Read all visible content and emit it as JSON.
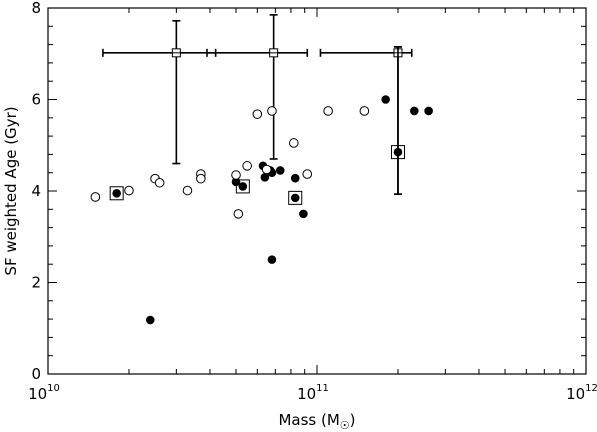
{
  "chart_data": {
    "type": "scatter",
    "title": "",
    "xlabel": {
      "main": "Mass (M",
      "sym": "☉",
      "close": ")"
    },
    "ylabel": "SF weighted Age (Gyr)",
    "xscale": "log",
    "xlim": [
      10000000000.0,
      1000000000000.0
    ],
    "ylim": [
      0,
      8
    ],
    "x_major_ticks": [
      {
        "value": 10000000000.0,
        "base": "10",
        "exp": "10"
      },
      {
        "value": 100000000000.0,
        "base": "10",
        "exp": "11"
      },
      {
        "value": 1000000000000.0,
        "base": "10",
        "exp": "12"
      }
    ],
    "y_major_ticks": [
      0,
      2,
      4,
      6,
      8
    ],
    "y_minor_step": 0.4,
    "grid": false,
    "legend": "none",
    "series": [
      {
        "marker": "filled-circle",
        "points": [
          [
            18000000000.0,
            3.95
          ],
          [
            24000000000.0,
            1.18
          ],
          [
            50000000000.0,
            4.2
          ],
          [
            53000000000.0,
            4.1
          ],
          [
            63000000000.0,
            4.55
          ],
          [
            64000000000.0,
            4.3
          ],
          [
            67000000000.0,
            4.45
          ],
          [
            68000000000.0,
            4.4
          ],
          [
            68000000000.0,
            2.5
          ],
          [
            73000000000.0,
            4.45
          ],
          [
            83000000000.0,
            3.85
          ],
          [
            83000000000.0,
            4.28
          ],
          [
            89000000000.0,
            3.5
          ],
          [
            180000000000.0,
            6.0
          ],
          [
            200000000000.0,
            4.85
          ],
          [
            230000000000.0,
            5.75
          ],
          [
            260000000000.0,
            5.75
          ]
        ]
      },
      {
        "marker": "open-circle",
        "points": [
          [
            15000000000.0,
            3.87
          ],
          [
            20000000000.0,
            4.01
          ],
          [
            25000000000.0,
            4.27
          ],
          [
            26000000000.0,
            4.18
          ],
          [
            33000000000.0,
            4.01
          ],
          [
            37000000000.0,
            4.37
          ],
          [
            37000000000.0,
            4.27
          ],
          [
            50000000000.0,
            4.35
          ],
          [
            51000000000.0,
            3.5
          ],
          [
            55000000000.0,
            4.55
          ],
          [
            60000000000.0,
            5.68
          ],
          [
            65000000000.0,
            4.47
          ],
          [
            68000000000.0,
            5.75
          ],
          [
            82000000000.0,
            5.05
          ],
          [
            92000000000.0,
            4.37
          ],
          [
            110000000000.0,
            5.75
          ],
          [
            150000000000.0,
            5.75
          ]
        ]
      },
      {
        "marker": "square-highlight",
        "points": [
          [
            18000000000.0,
            3.95
          ],
          [
            53000000000.0,
            4.1
          ],
          [
            83000000000.0,
            3.85
          ],
          [
            200000000000.0,
            4.85
          ]
        ]
      }
    ],
    "error_bars": [
      {
        "x": 30000000000.0,
        "y": 7.02,
        "x_low": 16000000000.0,
        "x_high": 42000000000.0,
        "y_low": 4.6,
        "y_high": 7.72
      },
      {
        "x": 69000000000.0,
        "y": 7.02,
        "x_low": 39000000000.0,
        "x_high": 92000000000.0,
        "y_low": 4.7,
        "y_high": 7.85
      },
      {
        "x": 200000000000.0,
        "y": 7.02,
        "x_low": 103000000000.0,
        "x_high": 225000000000.0,
        "y_low": 3.93,
        "y_high": 7.15
      },
      {
        "x": 200000000000.0,
        "y": 4.85,
        "x_low": 200000000000.0,
        "x_high": 200000000000.0,
        "y_low": 3.93,
        "y_high": 7.15
      }
    ]
  }
}
